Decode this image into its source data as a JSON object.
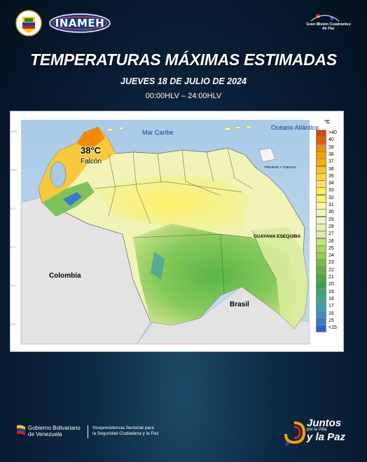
{
  "header": {
    "logo_left": "INAMEH",
    "logo_right": "Gran Misión Cuadrantes de Paz"
  },
  "title": "TEMPERATURAS MÁXIMAS ESTIMADAS",
  "subtitle": "JUEVES 18 DE JULIO DE 2024",
  "time_range": "00:00HLV – 24:00HLV",
  "map": {
    "labels": {
      "caribe": "Mar Caribe",
      "oceano": "Océano Atlántico",
      "colombia": "Colombia",
      "brasil": "Brasil",
      "guayana": "GUAYANA ESEQUIBA",
      "trinidad": "TRINIDAD Y TOBAGO"
    },
    "highlight": {
      "temperature": "38°C",
      "state": "Falcón"
    },
    "legend": {
      "unit": "°C",
      "items": [
        {
          "label": ">40",
          "color": "#d9480f"
        },
        {
          "label": "40",
          "color": "#e8590c"
        },
        {
          "label": "39",
          "color": "#f08c00"
        },
        {
          "label": "38",
          "color": "#f59f00"
        },
        {
          "label": "37",
          "color": "#fab005"
        },
        {
          "label": "36",
          "color": "#fcc419"
        },
        {
          "label": "35",
          "color": "#ffd43b"
        },
        {
          "label": "34",
          "color": "#ffe066"
        },
        {
          "label": "33",
          "color": "#fff04d"
        },
        {
          "label": "32",
          "color": "#fff566"
        },
        {
          "label": "31",
          "color": "#fff9a8"
        },
        {
          "label": "30",
          "color": "#f4f7b0"
        },
        {
          "label": "29",
          "color": "#eef3c0"
        },
        {
          "label": "28",
          "color": "#e4efb8"
        },
        {
          "label": "27",
          "color": "#d8ec9c"
        },
        {
          "label": "26",
          "color": "#c0e57a"
        },
        {
          "label": "25",
          "color": "#a6d95a"
        },
        {
          "label": "24",
          "color": "#8fcf4a"
        },
        {
          "label": "23",
          "color": "#74c042"
        },
        {
          "label": "22",
          "color": "#5cb43b"
        },
        {
          "label": "21",
          "color": "#45a838"
        },
        {
          "label": "20",
          "color": "#38a448"
        },
        {
          "label": "19",
          "color": "#3aa86a"
        },
        {
          "label": "18",
          "color": "#3aa88a"
        },
        {
          "label": "17",
          "color": "#3a9fa8"
        },
        {
          "label": "16",
          "color": "#3a8ec0"
        },
        {
          "label": "15",
          "color": "#3a78d0"
        },
        {
          "label": "<15",
          "color": "#2e5fd0"
        }
      ]
    }
  },
  "footer": {
    "gobierno_line1": "Gobierno Bolivariano",
    "gobierno_line2": "de Venezuela",
    "vice_line1": "Vicepresidencia Sectorial para",
    "vice_line2": "la Seguridad Ciudadana y la Paz",
    "juntos_line1": "Juntos",
    "juntos_line2": "por la Vida",
    "juntos_line3": "y la Paz"
  }
}
